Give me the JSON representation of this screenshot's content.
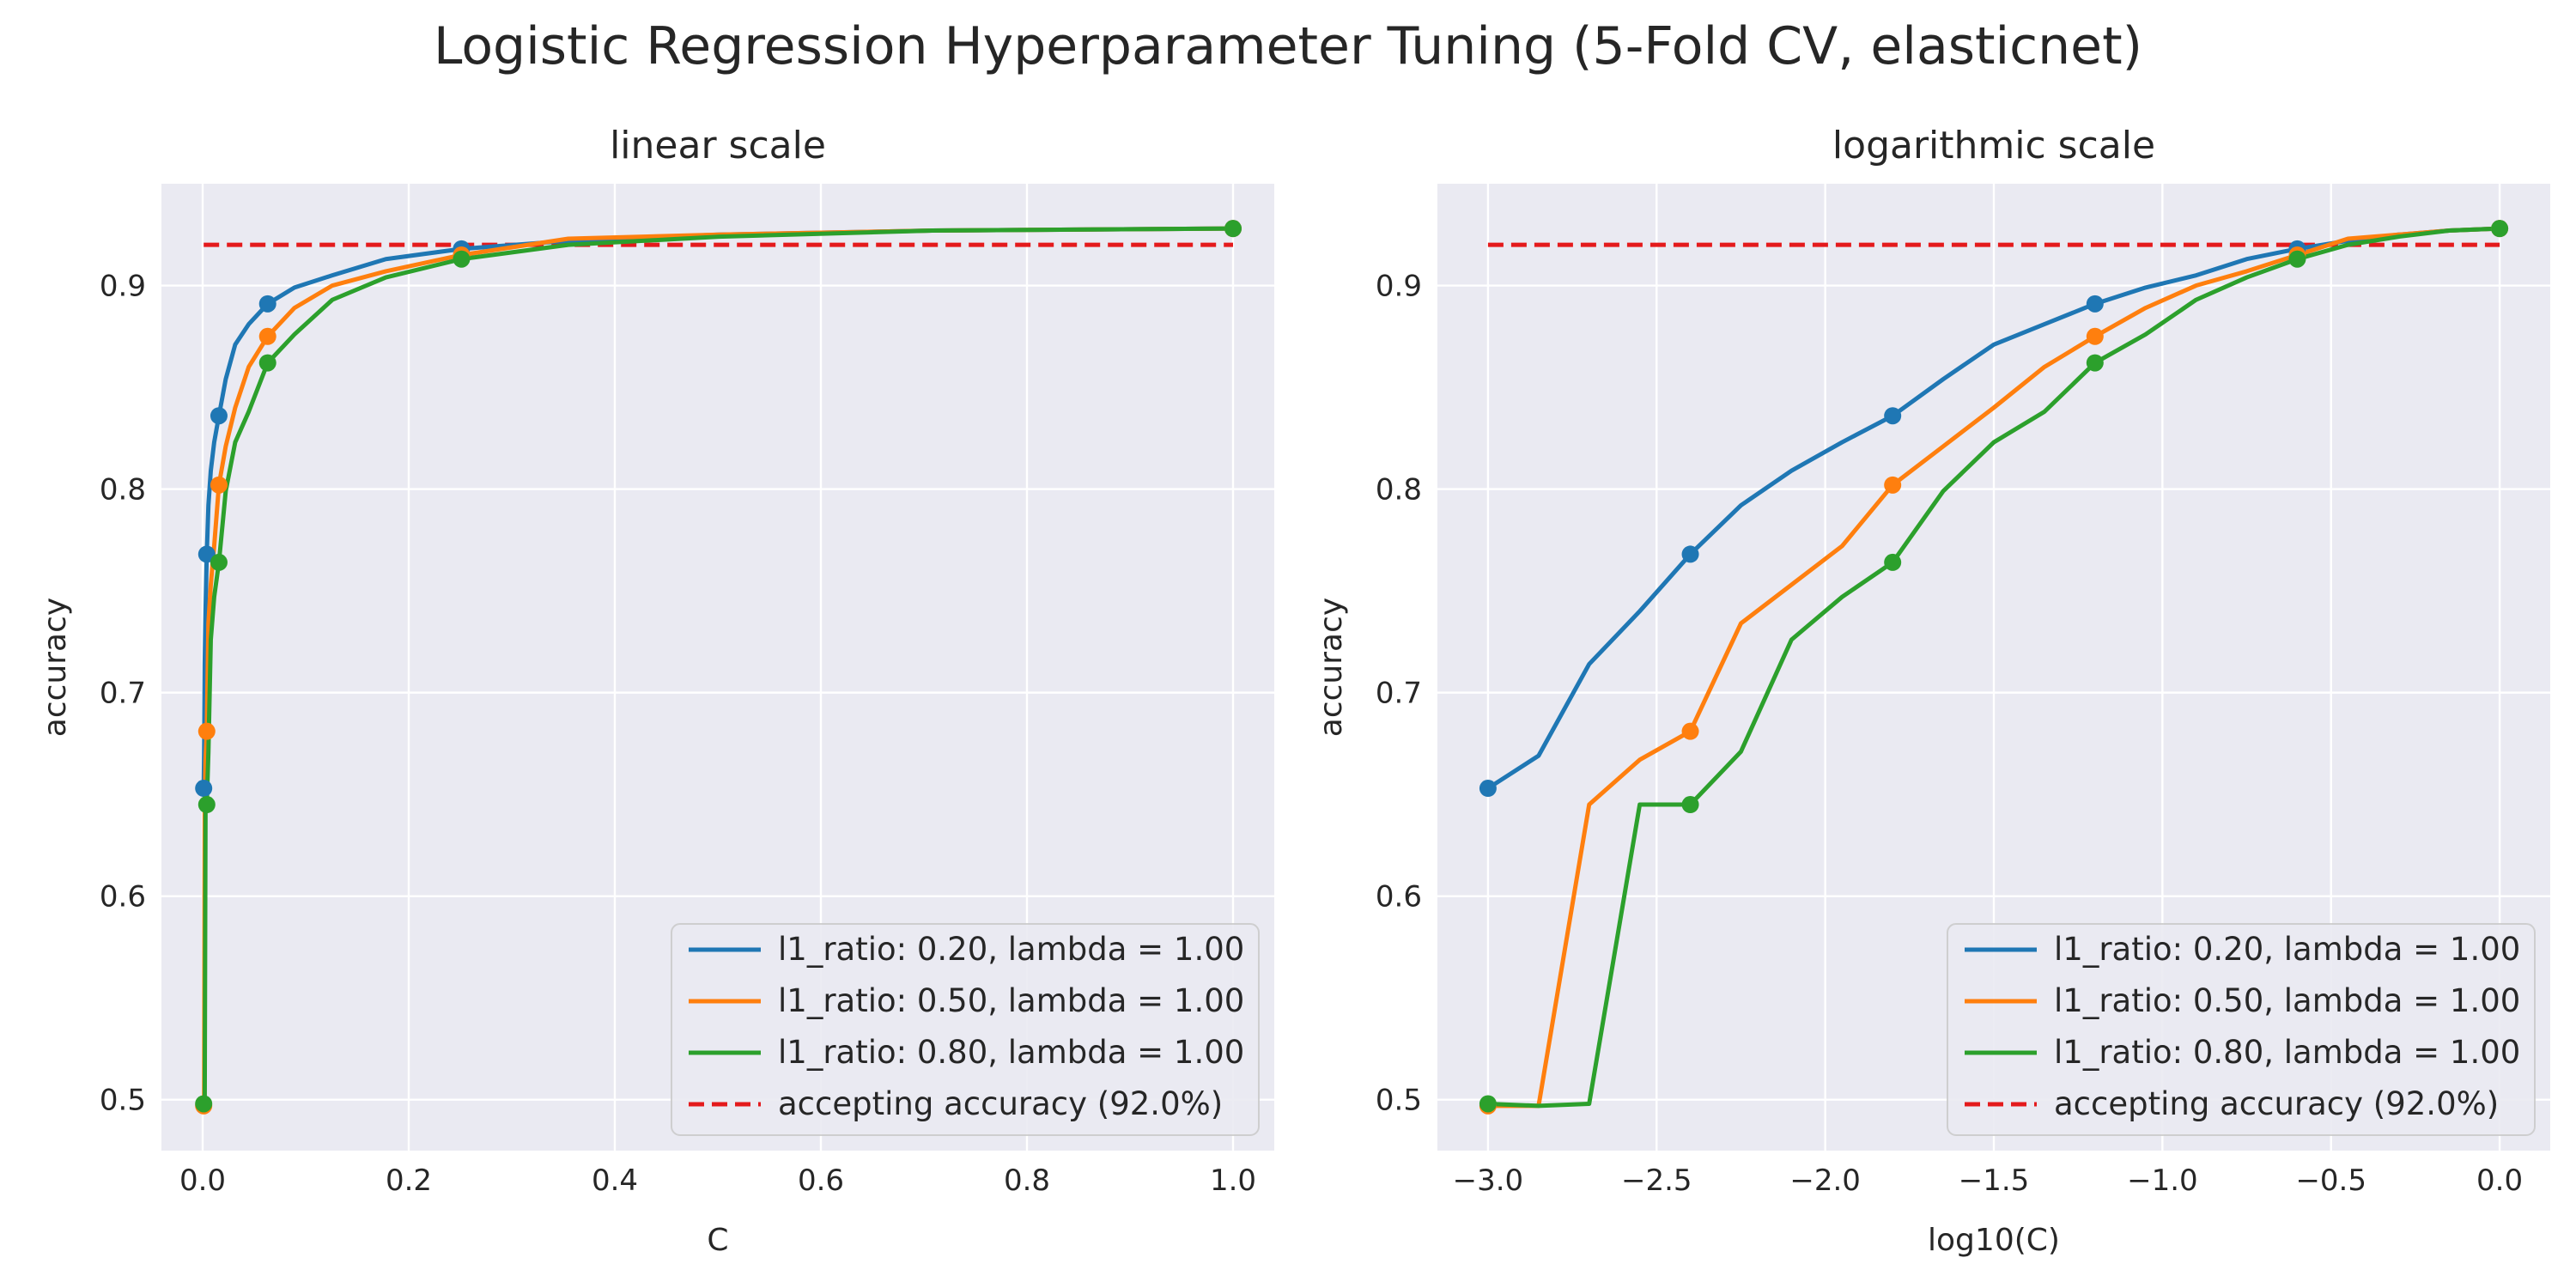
{
  "figure": {
    "suptitle": "Logistic Regression Hyperparameter Tuning (5-Fold CV, elasticnet)"
  },
  "colors": {
    "series": [
      "#1f77b4",
      "#ff7f0e",
      "#2ca02c"
    ],
    "threshold": "#e41a1c",
    "plot_background": "#eaeaf2",
    "grid": "#ffffff"
  },
  "chart_data": [
    {
      "type": "line",
      "title": "linear scale",
      "xlabel": "C",
      "ylabel": "accuracy",
      "xlim": [
        -0.04,
        1.04
      ],
      "ylim": [
        0.475,
        0.95
      ],
      "xticks": [
        0.0,
        0.2,
        0.4,
        0.6,
        0.8,
        1.0
      ],
      "xtick_labels": [
        "0.0",
        "0.2",
        "0.4",
        "0.6",
        "0.8",
        "1.0"
      ],
      "yticks": [
        0.5,
        0.6,
        0.7,
        0.8,
        0.9
      ],
      "ytick_labels": [
        "0.5",
        "0.6",
        "0.7",
        "0.8",
        "0.9"
      ],
      "grid": true,
      "legend": "lower-right",
      "series": [
        {
          "name": "l1_ratio: 0.20, lambda = 1.00",
          "x": [
            0.001,
            0.0014,
            0.002,
            0.0028,
            0.004,
            0.0056,
            0.0079,
            0.0112,
            0.0158,
            0.0224,
            0.0316,
            0.0447,
            0.0631,
            0.0891,
            0.1259,
            0.1778,
            0.2512,
            0.3548,
            0.5012,
            0.7079,
            1.0
          ],
          "y": [
            0.653,
            0.669,
            0.714,
            0.74,
            0.768,
            0.792,
            0.809,
            0.823,
            0.836,
            0.854,
            0.871,
            0.881,
            0.891,
            0.899,
            0.905,
            0.913,
            0.918,
            0.922,
            0.925,
            0.927,
            0.928
          ]
        },
        {
          "name": "l1_ratio: 0.50, lambda = 1.00",
          "x": [
            0.001,
            0.0014,
            0.002,
            0.0028,
            0.004,
            0.0056,
            0.0079,
            0.0112,
            0.0158,
            0.0224,
            0.0316,
            0.0447,
            0.0631,
            0.0891,
            0.1259,
            0.1778,
            0.2512,
            0.3548,
            0.5012,
            0.7079,
            1.0
          ],
          "y": [
            0.497,
            0.497,
            0.645,
            0.667,
            0.681,
            0.734,
            0.753,
            0.772,
            0.802,
            0.821,
            0.84,
            0.86,
            0.875,
            0.889,
            0.9,
            0.907,
            0.915,
            0.923,
            0.925,
            0.927,
            0.928
          ]
        },
        {
          "name": "l1_ratio: 0.80, lambda = 1.00",
          "x": [
            0.001,
            0.0014,
            0.002,
            0.0028,
            0.004,
            0.0056,
            0.0079,
            0.0112,
            0.0158,
            0.0224,
            0.0316,
            0.0447,
            0.0631,
            0.0891,
            0.1259,
            0.1778,
            0.2512,
            0.3548,
            0.5012,
            0.7079,
            1.0
          ],
          "y": [
            0.498,
            0.497,
            0.498,
            0.645,
            0.645,
            0.671,
            0.726,
            0.747,
            0.764,
            0.799,
            0.823,
            0.838,
            0.862,
            0.876,
            0.893,
            0.904,
            0.913,
            0.92,
            0.924,
            0.927,
            0.928
          ]
        }
      ],
      "threshold": {
        "name": "accepting accuracy (92.0%)",
        "y": 0.92,
        "x_range": [
          0.001,
          1.0
        ]
      }
    },
    {
      "type": "line",
      "title": "logarithmic scale",
      "xlabel": "log10(C)",
      "ylabel": "accuracy",
      "xlim": [
        -3.15,
        0.15
      ],
      "ylim": [
        0.475,
        0.95
      ],
      "xticks": [
        -3.0,
        -2.5,
        -2.0,
        -1.5,
        -1.0,
        -0.5,
        0.0
      ],
      "xtick_labels": [
        "−3.0",
        "−2.5",
        "−2.0",
        "−1.5",
        "−1.0",
        "−0.5",
        "0.0"
      ],
      "yticks": [
        0.5,
        0.6,
        0.7,
        0.8,
        0.9
      ],
      "ytick_labels": [
        "0.5",
        "0.6",
        "0.7",
        "0.8",
        "0.9"
      ],
      "grid": true,
      "legend": "lower-right",
      "series": [
        {
          "name": "l1_ratio: 0.20, lambda = 1.00",
          "x": [
            -3.0,
            -2.85,
            -2.7,
            -2.55,
            -2.4,
            -2.25,
            -2.1,
            -1.95,
            -1.8,
            -1.65,
            -1.5,
            -1.35,
            -1.2,
            -1.05,
            -0.9,
            -0.75,
            -0.6,
            -0.45,
            -0.3,
            -0.15,
            0.0
          ],
          "y": [
            0.653,
            0.669,
            0.714,
            0.74,
            0.768,
            0.792,
            0.809,
            0.823,
            0.836,
            0.854,
            0.871,
            0.881,
            0.891,
            0.899,
            0.905,
            0.913,
            0.918,
            0.922,
            0.925,
            0.927,
            0.928
          ]
        },
        {
          "name": "l1_ratio: 0.50, lambda = 1.00",
          "x": [
            -3.0,
            -2.85,
            -2.7,
            -2.55,
            -2.4,
            -2.25,
            -2.1,
            -1.95,
            -1.8,
            -1.65,
            -1.5,
            -1.35,
            -1.2,
            -1.05,
            -0.9,
            -0.75,
            -0.6,
            -0.45,
            -0.3,
            -0.15,
            0.0
          ],
          "y": [
            0.497,
            0.497,
            0.645,
            0.667,
            0.681,
            0.734,
            0.753,
            0.772,
            0.802,
            0.821,
            0.84,
            0.86,
            0.875,
            0.889,
            0.9,
            0.907,
            0.915,
            0.923,
            0.925,
            0.927,
            0.928
          ]
        },
        {
          "name": "l1_ratio: 0.80, lambda = 1.00",
          "x": [
            -3.0,
            -2.85,
            -2.7,
            -2.55,
            -2.4,
            -2.25,
            -2.1,
            -1.95,
            -1.8,
            -1.65,
            -1.5,
            -1.35,
            -1.2,
            -1.05,
            -0.9,
            -0.75,
            -0.6,
            -0.45,
            -0.3,
            -0.15,
            0.0
          ],
          "y": [
            0.498,
            0.497,
            0.498,
            0.645,
            0.645,
            0.671,
            0.726,
            0.747,
            0.764,
            0.799,
            0.823,
            0.838,
            0.862,
            0.876,
            0.893,
            0.904,
            0.913,
            0.92,
            0.924,
            0.927,
            0.928
          ]
        }
      ],
      "threshold": {
        "name": "accepting accuracy (92.0%)",
        "y": 0.92,
        "x_range": [
          -3.0,
          0.0
        ]
      }
    }
  ]
}
